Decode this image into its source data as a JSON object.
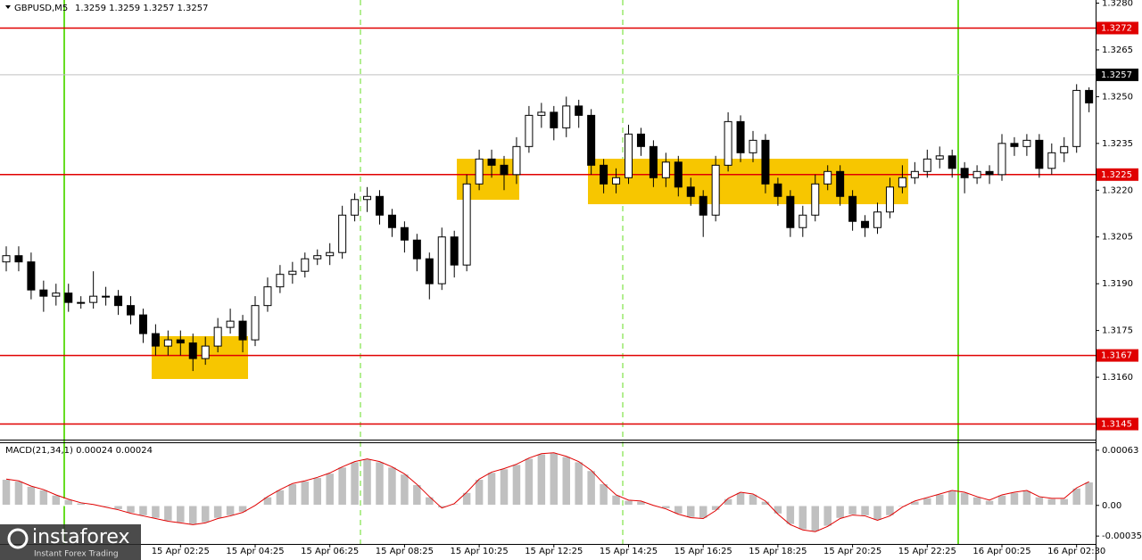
{
  "chart_data": [
    {
      "type": "candlestick",
      "title": "GBPUSD,M5",
      "subtitle": "1.3259 1.3259 1.3257 1.3257",
      "categories": [
        null,
        null,
        null,
        null,
        null,
        null,
        null,
        null,
        null,
        null,
        null,
        null,
        null,
        null,
        "15 Apr 02:25",
        null,
        null,
        null,
        null,
        null,
        "15 Apr 04:25",
        null,
        null,
        null,
        null,
        null,
        "15 Apr 06:25",
        null,
        null,
        null,
        null,
        null,
        "15 Apr 08:25",
        null,
        null,
        null,
        null,
        null,
        "15 Apr 10:25",
        null,
        null,
        null,
        null,
        null,
        "15 Apr 12:25",
        null,
        null,
        null,
        null,
        null,
        "15 Apr 14:25",
        null,
        null,
        null,
        null,
        null,
        "15 Apr 16:25",
        null,
        null,
        null,
        null,
        null,
        "15 Apr 18:25",
        null,
        null,
        null,
        null,
        null,
        "15 Apr 20:25",
        null,
        null,
        null,
        null,
        null,
        "15 Apr 22:25",
        null,
        null,
        null,
        null,
        null,
        "16 Apr 00:25",
        null,
        null,
        null,
        null,
        null,
        "16 Apr 02:30",
        null
      ],
      "open": [
        1.3197,
        1.3199,
        1.3197,
        1.3188,
        1.3186,
        1.3187,
        1.3184,
        1.3184,
        1.3186,
        1.3186,
        1.3183,
        1.318,
        1.3174,
        1.317,
        1.3172,
        1.3171,
        1.3166,
        1.317,
        1.3176,
        1.3178,
        1.3172,
        1.3183,
        1.3189,
        1.3193,
        1.3194,
        1.3198,
        1.3199,
        1.32,
        1.3212,
        1.3217,
        1.3218,
        1.3212,
        1.3208,
        1.3204,
        1.3198,
        1.319,
        1.3205,
        1.3196,
        1.3222,
        1.323,
        1.3228,
        1.3225,
        1.3234,
        1.3244,
        1.3245,
        1.324,
        1.3247,
        1.3244,
        1.3228,
        1.3222,
        1.3224,
        1.3238,
        1.3234,
        1.3224,
        1.3229,
        1.3221,
        1.3218,
        1.3212,
        1.3228,
        1.3242,
        1.3232,
        1.3236,
        1.3222,
        1.3218,
        1.3208,
        1.3212,
        1.3222,
        1.3226,
        1.3218,
        1.321,
        1.3208,
        1.3213,
        1.3221,
        1.3224,
        1.3226,
        1.323,
        1.3231,
        1.3227,
        1.3224,
        1.3226,
        1.3225,
        1.3235,
        1.3234,
        1.3236,
        1.3227,
        1.3232,
        1.3234,
        1.3252
      ],
      "high": [
        1.3202,
        1.3202,
        1.32,
        1.3191,
        1.319,
        1.319,
        1.3186,
        1.3194,
        1.3189,
        1.3188,
        1.3186,
        1.3182,
        1.3177,
        1.3175,
        1.3175,
        1.3174,
        1.3173,
        1.3179,
        1.3182,
        1.318,
        1.3186,
        1.3192,
        1.3196,
        1.3197,
        1.32,
        1.3201,
        1.3203,
        1.3215,
        1.3219,
        1.3221,
        1.322,
        1.3214,
        1.321,
        1.3206,
        1.32,
        1.3208,
        1.3207,
        1.3225,
        1.3233,
        1.3233,
        1.3231,
        1.3237,
        1.3247,
        1.3248,
        1.3247,
        1.325,
        1.3249,
        1.3246,
        1.323,
        1.3227,
        1.3241,
        1.324,
        1.3236,
        1.3232,
        1.3231,
        1.3224,
        1.322,
        1.3231,
        1.3245,
        1.3244,
        1.3239,
        1.3238,
        1.3224,
        1.322,
        1.3215,
        1.3225,
        1.3228,
        1.3228,
        1.322,
        1.3212,
        1.3216,
        1.3224,
        1.3228,
        1.3229,
        1.3233,
        1.3234,
        1.3233,
        1.3229,
        1.3228,
        1.3228,
        1.3238,
        1.3237,
        1.3238,
        1.3238,
        1.3235,
        1.3237,
        1.3254,
        1.3253
      ],
      "low": [
        1.3194,
        1.3194,
        1.3185,
        1.3181,
        1.3183,
        1.3181,
        1.3182,
        1.3182,
        1.3183,
        1.318,
        1.3177,
        1.3171,
        1.3167,
        1.3167,
        1.3167,
        1.3162,
        1.3164,
        1.3168,
        1.3174,
        1.3168,
        1.317,
        1.3181,
        1.3187,
        1.319,
        1.3192,
        1.3196,
        1.3196,
        1.3198,
        1.321,
        1.3213,
        1.3209,
        1.3205,
        1.32,
        1.3194,
        1.3185,
        1.3188,
        1.3192,
        1.3194,
        1.322,
        1.3224,
        1.322,
        1.3222,
        1.3232,
        1.324,
        1.3236,
        1.3237,
        1.324,
        1.3225,
        1.3219,
        1.3219,
        1.3222,
        1.3231,
        1.3221,
        1.3221,
        1.3218,
        1.3215,
        1.3205,
        1.321,
        1.3226,
        1.3229,
        1.3229,
        1.3219,
        1.3215,
        1.3205,
        1.3205,
        1.321,
        1.322,
        1.3215,
        1.3207,
        1.3205,
        1.3206,
        1.3211,
        1.3219,
        1.3222,
        1.3224,
        1.3227,
        1.3224,
        1.3219,
        1.3222,
        1.3222,
        1.3223,
        1.3231,
        1.3231,
        1.3224,
        1.3225,
        1.3229,
        1.3232,
        1.3245
      ],
      "close": [
        1.3199,
        1.3197,
        1.3188,
        1.3186,
        1.3187,
        1.3184,
        1.3184,
        1.3186,
        1.3186,
        1.3183,
        1.318,
        1.3174,
        1.317,
        1.3172,
        1.3171,
        1.3166,
        1.317,
        1.3176,
        1.3178,
        1.3172,
        1.3183,
        1.3189,
        1.3193,
        1.3194,
        1.3198,
        1.3199,
        1.32,
        1.3212,
        1.3217,
        1.3218,
        1.3212,
        1.3208,
        1.3204,
        1.3198,
        1.319,
        1.3205,
        1.3196,
        1.3222,
        1.323,
        1.3228,
        1.3225,
        1.3234,
        1.3244,
        1.3245,
        1.324,
        1.3247,
        1.3244,
        1.3228,
        1.3222,
        1.3224,
        1.3238,
        1.3234,
        1.3224,
        1.3229,
        1.3221,
        1.3218,
        1.3212,
        1.3228,
        1.3242,
        1.3232,
        1.3236,
        1.3222,
        1.3218,
        1.3208,
        1.3212,
        1.3222,
        1.3226,
        1.3218,
        1.321,
        1.3208,
        1.3213,
        1.3221,
        1.3224,
        1.3226,
        1.323,
        1.3231,
        1.3227,
        1.3224,
        1.3226,
        1.3225,
        1.3235,
        1.3234,
        1.3236,
        1.3227,
        1.3232,
        1.3234,
        1.3252,
        1.3248
      ],
      "up_color": "#ffffff",
      "down_color": "#000000",
      "ylim": [
        1.314,
        1.3281
      ],
      "yticks": [
        {
          "value": 1.328,
          "label": "1.3280"
        },
        1.3265,
        {
          "value": 1.325,
          "label": "1.3250"
        },
        1.3235,
        {
          "value": 1.322,
          "label": "1.3220"
        },
        1.3205,
        {
          "value": 1.319,
          "label": "1.3190"
        },
        1.3175,
        {
          "value": 1.316,
          "label": "1.3160"
        }
      ],
      "levels": [
        1.3272,
        1.3225,
        1.3167,
        1.3145
      ],
      "level_color": "#e00000",
      "last_price": 1.3257
    },
    {
      "type": "bar",
      "title": "MACD(21,34,1) 0.00024 0.00024",
      "values": [
        0.0003,
        0.00028,
        0.00022,
        0.00018,
        0.00012,
        7e-05,
        3e-05,
        1e-05,
        -2e-05,
        -5e-05,
        -9e-05,
        -0.00012,
        -0.00015,
        -0.00018,
        -0.0002,
        -0.00022,
        -0.0002,
        -0.00015,
        -0.00012,
        -8e-05,
        0,
        0.0001,
        0.00018,
        0.00025,
        0.00028,
        0.00032,
        0.00037,
        0.00044,
        0.0005,
        0.00053,
        0.0005,
        0.00044,
        0.00036,
        0.00024,
        0.0001,
        -3e-05,
        2e-05,
        0.00015,
        0.0003,
        0.00038,
        0.00042,
        0.00047,
        0.00054,
        0.00059,
        0.0006,
        0.00056,
        0.0005,
        0.0004,
        0.00025,
        0.00012,
        6e-05,
        5e-05,
        0,
        -4e-05,
        -0.0001,
        -0.00014,
        -0.00015,
        -6e-05,
        8e-05,
        0.00015,
        0.00013,
        5e-05,
        -0.0001,
        -0.00022,
        -0.00028,
        -0.0003,
        -0.00024,
        -0.00015,
        -0.00011,
        -0.00012,
        -0.00017,
        -0.00012,
        -2e-05,
        5e-05,
        9e-05,
        0.00013,
        0.00017,
        0.00015,
        0.0001,
        6e-05,
        0.00012,
        0.00015,
        0.00017,
        0.0001,
        8e-05,
        8e-05,
        0.0002,
        0.00027
      ],
      "color": "#c0c0c0",
      "line_color": "#e00000",
      "ylim": [
        -0.00044,
        0.00071
      ],
      "yticks": [
        0.00063,
        {
          "value": 0,
          "label": "0.00"
        },
        -0.00035
      ]
    }
  ],
  "logo": {
    "name": "instaforex",
    "tagline": "Instant Forex Trading"
  }
}
